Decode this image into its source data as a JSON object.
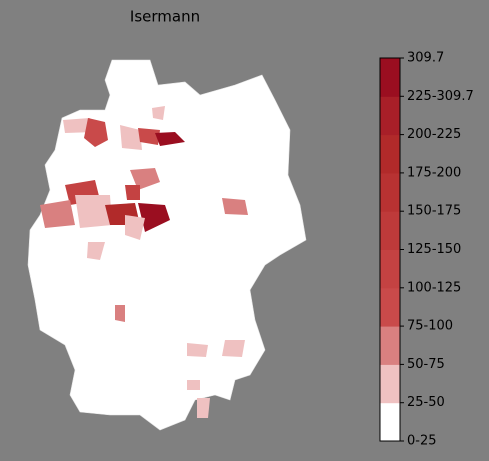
{
  "title": "Isermann",
  "legend": {
    "labels": [
      "0-25",
      "25-50",
      "50-75",
      "75-100",
      "100-125",
      "125-150",
      "150-175",
      "175-200",
      "200-225",
      "225-309.7",
      "309.7"
    ],
    "colors": [
      "#ffffff",
      "#efc1c1",
      "#d98080",
      "#c94a4a",
      "#c44242",
      "#be3a3a",
      "#b83232",
      "#b12a2a",
      "#a81f28",
      "#9a0e20"
    ]
  }
}
